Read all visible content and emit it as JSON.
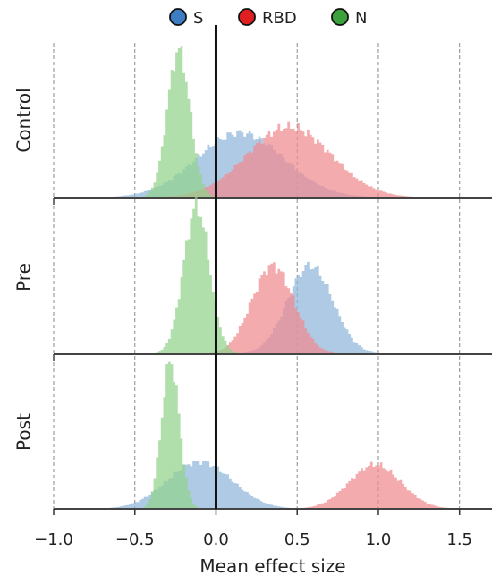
{
  "chart_data": {
    "type": "histogram",
    "xlabel": "Mean effect size",
    "xlim": [
      -1.0,
      1.7
    ],
    "xticks": [
      -1.0,
      -0.5,
      0.0,
      0.5,
      1.0,
      1.5
    ],
    "xtick_labels": [
      "−1.0",
      "−0.5",
      "0.0",
      "0.5",
      "1.0",
      "1.5"
    ],
    "vertical_reference_line": 0.0,
    "grid": "vertical dashed",
    "legend": {
      "placement": "top-center",
      "entries": [
        {
          "label": "S",
          "color": "#3d7dc4"
        },
        {
          "label": "RBD",
          "color": "#e02020"
        },
        {
          "label": "N",
          "color": "#3ba23b"
        }
      ]
    },
    "series_colors": {
      "S": "#8fb6db",
      "RBD": "#f08a8f",
      "N": "#92d28c"
    },
    "panels": [
      {
        "label": "Control",
        "series": [
          {
            "name": "S",
            "mean": 0.15,
            "sd": 0.27,
            "relative_peak": 0.44
          },
          {
            "name": "RBD",
            "mean": 0.45,
            "sd": 0.26,
            "relative_peak": 0.48
          },
          {
            "name": "N",
            "mean": -0.23,
            "sd": 0.07,
            "relative_peak": 1.0
          }
        ]
      },
      {
        "label": "Pre",
        "series": [
          {
            "name": "S",
            "mean": 0.58,
            "sd": 0.14,
            "relative_peak": 0.6
          },
          {
            "name": "RBD",
            "mean": 0.35,
            "sd": 0.13,
            "relative_peak": 0.6
          },
          {
            "name": "N",
            "mean": -0.12,
            "sd": 0.08,
            "relative_peak": 1.0
          }
        ]
      },
      {
        "label": "Post",
        "series": [
          {
            "name": "S",
            "mean": -0.1,
            "sd": 0.2,
            "relative_peak": 0.32
          },
          {
            "name": "RBD",
            "mean": 0.98,
            "sd": 0.16,
            "relative_peak": 0.3
          },
          {
            "name": "N",
            "mean": -0.28,
            "sd": 0.055,
            "relative_peak": 1.0
          }
        ]
      }
    ]
  }
}
